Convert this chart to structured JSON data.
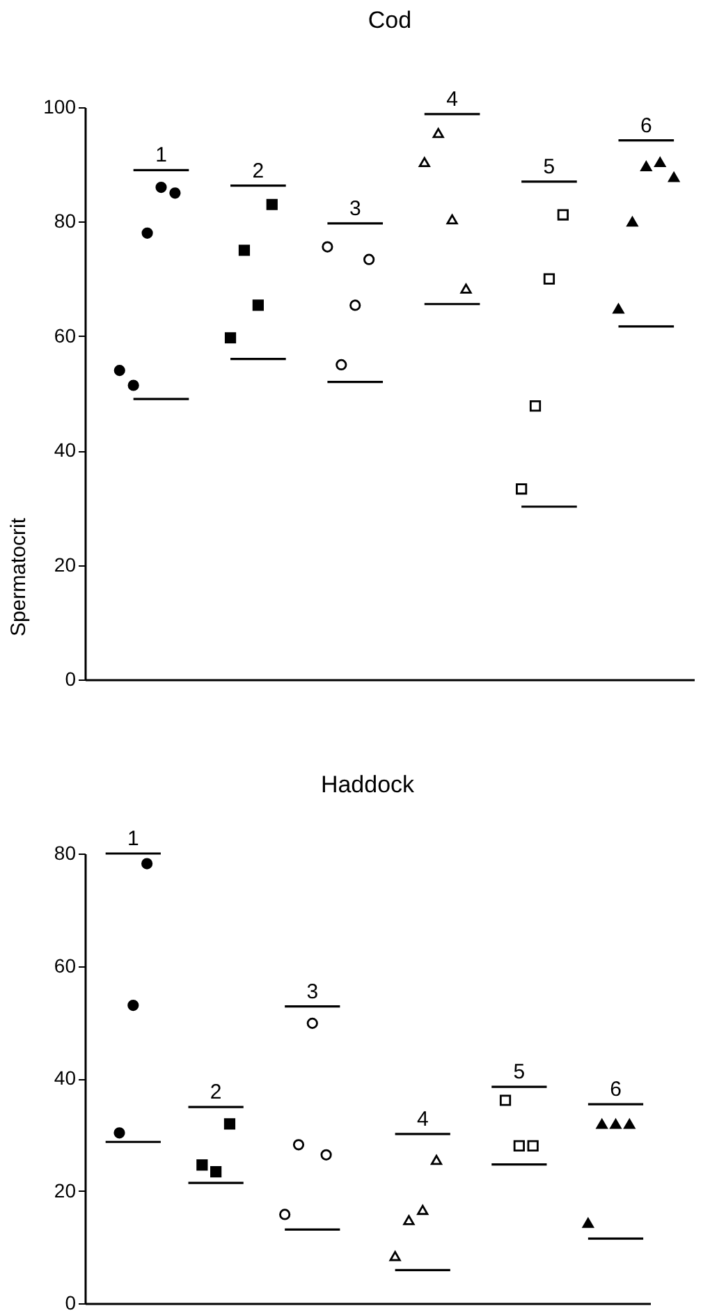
{
  "chart_data": [
    {
      "type": "scatter",
      "title": "Cod",
      "ylabel": "Spermatocrit",
      "ylim": [
        0,
        100
      ],
      "yticks": [
        0,
        20,
        40,
        60,
        80,
        100
      ],
      "tick_labels": "y",
      "grid": false,
      "categories": [
        null,
        null,
        null,
        null,
        null,
        null,
        null,
        null,
        null,
        null,
        null,
        null,
        null,
        null,
        null,
        null,
        null,
        null,
        null,
        null,
        null,
        null,
        null,
        null,
        null,
        null,
        null,
        null,
        null,
        null,
        null,
        null,
        null,
        null,
        null,
        null,
        null,
        null,
        null,
        null,
        null,
        null,
        null,
        null
      ],
      "series": [
        {
          "color": "#000000",
          "marker": "circle",
          "values": [
            null,
            null,
            54,
            51.4,
            78,
            86,
            85,
            null,
            null,
            null,
            null,
            null,
            null,
            null,
            null,
            null,
            null,
            null,
            null,
            null,
            null,
            null,
            null,
            null,
            null,
            null,
            null,
            null,
            null,
            null,
            null,
            null,
            null,
            null,
            null,
            null,
            null,
            null,
            null,
            null,
            null,
            null,
            null,
            null
          ]
        },
        {
          "color": "#000000",
          "marker": "square",
          "values": [
            null,
            null,
            null,
            null,
            null,
            null,
            null,
            null,
            null,
            null,
            59.7,
            75,
            65.4,
            83,
            null,
            null,
            null,
            null,
            null,
            null,
            null,
            null,
            null,
            null,
            null,
            null,
            null,
            null,
            null,
            null,
            null,
            null,
            null,
            null,
            null,
            null,
            null,
            null,
            null,
            null,
            null,
            null,
            null,
            null
          ]
        },
        {
          "color": "#ffffff",
          "marker": "circle",
          "values": [
            null,
            null,
            null,
            null,
            null,
            null,
            null,
            null,
            null,
            null,
            null,
            null,
            null,
            null,
            null,
            null,
            null,
            75.6,
            55,
            65.4,
            73.4,
            null,
            null,
            null,
            null,
            null,
            null,
            null,
            null,
            null,
            null,
            null,
            null,
            null,
            null,
            null,
            null,
            null,
            null,
            null,
            null,
            null,
            null,
            null
          ]
        },
        {
          "color": "#ffffff",
          "marker": "triangle",
          "values": [
            null,
            null,
            null,
            null,
            null,
            null,
            null,
            null,
            null,
            null,
            null,
            null,
            null,
            null,
            null,
            null,
            null,
            null,
            null,
            null,
            null,
            null,
            null,
            null,
            90.4,
            95.5,
            80.4,
            68.3,
            null,
            null,
            null,
            null,
            null,
            null,
            null,
            null,
            null,
            null,
            null,
            null,
            null,
            null,
            null,
            null
          ]
        },
        {
          "color": "#ffffff",
          "marker": "square",
          "values": [
            null,
            null,
            null,
            null,
            null,
            null,
            null,
            null,
            null,
            null,
            null,
            null,
            null,
            null,
            null,
            null,
            null,
            null,
            null,
            null,
            null,
            null,
            null,
            null,
            null,
            null,
            null,
            null,
            null,
            null,
            null,
            33.3,
            47.8,
            70,
            81.2,
            null,
            null,
            null,
            null,
            null,
            null,
            null,
            null,
            null
          ]
        },
        {
          "color": "#000000",
          "marker": "triangle",
          "values": [
            null,
            null,
            null,
            null,
            null,
            null,
            null,
            null,
            null,
            null,
            null,
            null,
            null,
            null,
            null,
            null,
            null,
            null,
            null,
            null,
            null,
            null,
            null,
            null,
            null,
            null,
            null,
            null,
            null,
            null,
            null,
            null,
            null,
            null,
            null,
            null,
            null,
            null,
            64.8,
            80,
            89.7,
            90.4,
            87.8,
            null
          ]
        },
        {
          "type": "line",
          "color": "#000000",
          "marker": "none",
          "line_style": "solid",
          "values": [
            null,
            null,
            null,
            89,
            89,
            89,
            89,
            89,
            null,
            null,
            null,
            null,
            null,
            null,
            null,
            null,
            null,
            null,
            null,
            null,
            null,
            null,
            null,
            null,
            null,
            null,
            null,
            null,
            null,
            null,
            null,
            null,
            null,
            null,
            null,
            null,
            null,
            null,
            null,
            null,
            null,
            null,
            null,
            null
          ]
        },
        {
          "type": "line",
          "color": "#000000",
          "marker": "none",
          "line_style": "solid",
          "values": [
            null,
            null,
            null,
            49,
            49,
            49,
            49,
            49,
            null,
            null,
            null,
            null,
            null,
            null,
            null,
            null,
            null,
            null,
            null,
            null,
            null,
            null,
            null,
            null,
            null,
            null,
            null,
            null,
            null,
            null,
            null,
            null,
            null,
            null,
            null,
            null,
            null,
            null,
            null,
            null,
            null,
            null,
            null,
            null
          ]
        },
        {
          "type": "line",
          "color": "#000000",
          "marker": "none",
          "line_style": "solid",
          "values": [
            null,
            null,
            null,
            null,
            null,
            null,
            null,
            null,
            null,
            null,
            86.3,
            86.3,
            86.3,
            86.3,
            86.3,
            null,
            null,
            null,
            null,
            null,
            null,
            null,
            null,
            null,
            null,
            null,
            null,
            null,
            null,
            null,
            null,
            null,
            null,
            null,
            null,
            null,
            null,
            null,
            null,
            null,
            null,
            null,
            null,
            null
          ]
        },
        {
          "type": "line",
          "color": "#000000",
          "marker": "none",
          "line_style": "solid",
          "values": [
            null,
            null,
            null,
            null,
            null,
            null,
            null,
            null,
            null,
            null,
            56,
            56,
            56,
            56,
            56,
            null,
            null,
            null,
            null,
            null,
            null,
            null,
            null,
            null,
            null,
            null,
            null,
            null,
            null,
            null,
            null,
            null,
            null,
            null,
            null,
            null,
            null,
            null,
            null,
            null,
            null,
            null,
            null,
            null
          ]
        },
        {
          "type": "line",
          "color": "#000000",
          "marker": "none",
          "line_style": "solid",
          "values": [
            null,
            null,
            null,
            null,
            null,
            null,
            null,
            null,
            null,
            null,
            null,
            null,
            null,
            null,
            null,
            null,
            null,
            79.7,
            79.7,
            79.7,
            79.7,
            79.7,
            null,
            null,
            null,
            null,
            null,
            null,
            null,
            null,
            null,
            null,
            null,
            null,
            null,
            null,
            null,
            null,
            null,
            null,
            null,
            null,
            null,
            null
          ]
        },
        {
          "type": "line",
          "color": "#000000",
          "marker": "none",
          "line_style": "solid",
          "values": [
            null,
            null,
            null,
            null,
            null,
            null,
            null,
            null,
            null,
            null,
            null,
            null,
            null,
            null,
            null,
            null,
            null,
            52,
            52,
            52,
            52,
            52,
            null,
            null,
            null,
            null,
            null,
            null,
            null,
            null,
            null,
            null,
            null,
            null,
            null,
            null,
            null,
            null,
            null,
            null,
            null,
            null,
            null,
            null
          ]
        },
        {
          "type": "line",
          "color": "#000000",
          "marker": "none",
          "line_style": "solid",
          "values": [
            null,
            null,
            null,
            null,
            null,
            null,
            null,
            null,
            null,
            null,
            null,
            null,
            null,
            null,
            null,
            null,
            null,
            null,
            null,
            null,
            null,
            null,
            null,
            null,
            98.8,
            98.8,
            98.8,
            98.8,
            98.8,
            null,
            null,
            null,
            null,
            null,
            null,
            null,
            null,
            null,
            null,
            null,
            null,
            null,
            null,
            null
          ]
        },
        {
          "type": "line",
          "color": "#000000",
          "marker": "none",
          "line_style": "solid",
          "values": [
            null,
            null,
            null,
            null,
            null,
            null,
            null,
            null,
            null,
            null,
            null,
            null,
            null,
            null,
            null,
            null,
            null,
            null,
            null,
            null,
            null,
            null,
            null,
            null,
            65.6,
            65.6,
            65.6,
            65.6,
            65.6,
            null,
            null,
            null,
            null,
            null,
            null,
            null,
            null,
            null,
            null,
            null,
            null,
            null,
            null,
            null
          ]
        },
        {
          "type": "line",
          "color": "#000000",
          "marker": "none",
          "line_style": "solid",
          "values": [
            null,
            null,
            null,
            null,
            null,
            null,
            null,
            null,
            null,
            null,
            null,
            null,
            null,
            null,
            null,
            null,
            null,
            null,
            null,
            null,
            null,
            null,
            null,
            null,
            null,
            null,
            null,
            null,
            null,
            null,
            null,
            87,
            87,
            87,
            87,
            87,
            null,
            null,
            null,
            null,
            null,
            null,
            null,
            null
          ]
        },
        {
          "type": "line",
          "color": "#000000",
          "marker": "none",
          "line_style": "solid",
          "values": [
            null,
            null,
            null,
            null,
            null,
            null,
            null,
            null,
            null,
            null,
            null,
            null,
            null,
            null,
            null,
            null,
            null,
            null,
            null,
            null,
            null,
            null,
            null,
            null,
            null,
            null,
            null,
            null,
            null,
            null,
            null,
            30.2,
            30.2,
            30.2,
            30.2,
            30.2,
            null,
            null,
            null,
            null,
            null,
            null,
            null,
            null
          ]
        },
        {
          "type": "line",
          "color": "#000000",
          "marker": "none",
          "line_style": "solid",
          "values": [
            null,
            null,
            null,
            null,
            null,
            null,
            null,
            null,
            null,
            null,
            null,
            null,
            null,
            null,
            null,
            null,
            null,
            null,
            null,
            null,
            null,
            null,
            null,
            null,
            null,
            null,
            null,
            null,
            null,
            null,
            null,
            null,
            null,
            null,
            null,
            null,
            null,
            null,
            94.2,
            94.2,
            94.2,
            94.2,
            94.2,
            null
          ]
        },
        {
          "type": "line",
          "color": "#000000",
          "marker": "none",
          "line_style": "solid",
          "values": [
            null,
            null,
            null,
            null,
            null,
            null,
            null,
            null,
            null,
            null,
            null,
            null,
            null,
            null,
            null,
            null,
            null,
            null,
            null,
            null,
            null,
            null,
            null,
            null,
            null,
            null,
            null,
            null,
            null,
            null,
            null,
            null,
            null,
            null,
            null,
            null,
            null,
            null,
            61.7,
            61.7,
            61.7,
            61.7,
            61.7,
            null
          ]
        }
      ],
      "annotations": [
        {
          "text": "1",
          "y": 89
        },
        {
          "text": "2",
          "y": 86.3
        },
        {
          "text": "3",
          "y": 79.7
        },
        {
          "text": "4",
          "y": 98.8
        },
        {
          "text": "5",
          "y": 87
        },
        {
          "text": "6",
          "y": 94.2
        }
      ]
    },
    {
      "type": "scatter",
      "title": "Haddock",
      "ylim": [
        0,
        80
      ],
      "yticks": [
        0,
        20,
        40,
        60,
        80
      ],
      "tick_labels": "y",
      "grid": false,
      "categories": [
        null,
        null,
        null,
        null,
        null,
        null,
        null,
        null,
        null,
        null,
        null,
        null,
        null,
        null,
        null,
        null,
        null,
        null,
        null,
        null,
        null,
        null,
        null,
        null,
        null,
        null,
        null,
        null,
        null,
        null,
        null,
        null,
        null,
        null,
        null,
        null,
        null,
        null,
        null,
        null,
        null
      ],
      "series": [
        {
          "color": "#000000",
          "marker": "circle",
          "values": [
            null,
            null,
            30.3,
            53,
            78.2,
            null,
            null,
            null,
            null,
            null,
            null,
            null,
            null,
            null,
            null,
            null,
            null,
            null,
            null,
            null,
            null,
            null,
            null,
            null,
            null,
            null,
            null,
            null,
            null,
            null,
            null,
            null,
            null,
            null,
            null,
            null,
            null,
            null,
            null,
            null,
            null
          ]
        },
        {
          "color": "#000000",
          "marker": "square",
          "values": [
            null,
            null,
            null,
            null,
            null,
            null,
            null,
            null,
            24.6,
            23.4,
            31.9,
            null,
            null,
            null,
            null,
            null,
            null,
            null,
            null,
            null,
            null,
            null,
            null,
            null,
            null,
            null,
            null,
            null,
            null,
            null,
            null,
            null,
            null,
            null,
            null,
            null,
            null,
            null,
            null,
            null,
            null
          ]
        },
        {
          "color": "#ffffff",
          "marker": "circle",
          "values": [
            null,
            null,
            null,
            null,
            null,
            null,
            null,
            null,
            null,
            null,
            null,
            null,
            null,
            null,
            15.8,
            28.2,
            49.8,
            26.4,
            null,
            null,
            null,
            null,
            null,
            null,
            null,
            null,
            null,
            null,
            null,
            null,
            null,
            null,
            null,
            null,
            null,
            null,
            null,
            null,
            null,
            null,
            null
          ]
        },
        {
          "color": "#ffffff",
          "marker": "triangle",
          "values": [
            null,
            null,
            null,
            null,
            null,
            null,
            null,
            null,
            null,
            null,
            null,
            null,
            null,
            null,
            null,
            null,
            null,
            null,
            null,
            null,
            null,
            null,
            8.4,
            14.8,
            16.6,
            25.5,
            null,
            null,
            null,
            null,
            null,
            null,
            null,
            null,
            null,
            null,
            null,
            null,
            null,
            null,
            null
          ]
        },
        {
          "color": "#ffffff",
          "marker": "square",
          "values": [
            null,
            null,
            null,
            null,
            null,
            null,
            null,
            null,
            null,
            null,
            null,
            null,
            null,
            null,
            null,
            null,
            null,
            null,
            null,
            null,
            null,
            null,
            null,
            null,
            null,
            null,
            null,
            null,
            null,
            null,
            36.1,
            28,
            28,
            null,
            null,
            null,
            null,
            null,
            null,
            null,
            null
          ]
        },
        {
          "color": "#000000",
          "marker": "triangle",
          "values": [
            null,
            null,
            null,
            null,
            null,
            null,
            null,
            null,
            null,
            null,
            null,
            null,
            null,
            null,
            null,
            null,
            null,
            null,
            null,
            null,
            null,
            null,
            null,
            null,
            null,
            null,
            null,
            null,
            null,
            null,
            null,
            null,
            null,
            null,
            null,
            null,
            14.3,
            31.9,
            31.9,
            31.9,
            null
          ]
        },
        {
          "type": "line",
          "color": "#000000",
          "marker": "none",
          "line_style": "solid",
          "values": [
            null,
            80,
            80,
            80,
            80,
            80,
            null,
            null,
            null,
            null,
            null,
            null,
            null,
            null,
            null,
            null,
            null,
            null,
            null,
            null,
            null,
            null,
            null,
            null,
            null,
            null,
            null,
            null,
            null,
            null,
            null,
            null,
            null,
            null,
            null,
            null,
            null,
            null,
            null,
            null,
            null
          ]
        },
        {
          "type": "line",
          "color": "#000000",
          "marker": "none",
          "line_style": "solid",
          "values": [
            null,
            28.7,
            28.7,
            28.7,
            28.7,
            28.7,
            null,
            null,
            null,
            null,
            null,
            null,
            null,
            null,
            null,
            null,
            null,
            null,
            null,
            null,
            null,
            null,
            null,
            null,
            null,
            null,
            null,
            null,
            null,
            null,
            null,
            null,
            null,
            null,
            null,
            null,
            null,
            null,
            null,
            null,
            null
          ]
        },
        {
          "type": "line",
          "color": "#000000",
          "marker": "none",
          "line_style": "solid",
          "values": [
            null,
            null,
            null,
            null,
            null,
            null,
            null,
            34.9,
            34.9,
            34.9,
            34.9,
            34.9,
            null,
            null,
            null,
            null,
            null,
            null,
            null,
            null,
            null,
            null,
            null,
            null,
            null,
            null,
            null,
            null,
            null,
            null,
            null,
            null,
            null,
            null,
            null,
            null,
            null,
            null,
            null,
            null,
            null
          ]
        },
        {
          "type": "line",
          "color": "#000000",
          "marker": "none",
          "line_style": "solid",
          "values": [
            null,
            null,
            null,
            null,
            null,
            null,
            null,
            21.4,
            21.4,
            21.4,
            21.4,
            21.4,
            null,
            null,
            null,
            null,
            null,
            null,
            null,
            null,
            null,
            null,
            null,
            null,
            null,
            null,
            null,
            null,
            null,
            null,
            null,
            null,
            null,
            null,
            null,
            null,
            null,
            null,
            null,
            null,
            null
          ]
        },
        {
          "type": "line",
          "color": "#000000",
          "marker": "none",
          "line_style": "solid",
          "values": [
            null,
            null,
            null,
            null,
            null,
            null,
            null,
            null,
            null,
            null,
            null,
            null,
            null,
            null,
            52.8,
            52.8,
            52.8,
            52.8,
            52.8,
            null,
            null,
            null,
            null,
            null,
            null,
            null,
            null,
            null,
            null,
            null,
            null,
            null,
            null,
            null,
            null,
            null,
            null,
            null,
            null,
            null,
            null
          ]
        },
        {
          "type": "line",
          "color": "#000000",
          "marker": "none",
          "line_style": "solid",
          "values": [
            null,
            null,
            null,
            null,
            null,
            null,
            null,
            null,
            null,
            null,
            null,
            null,
            null,
            null,
            13.1,
            13.1,
            13.1,
            13.1,
            13.1,
            null,
            null,
            null,
            null,
            null,
            null,
            null,
            null,
            null,
            null,
            null,
            null,
            null,
            null,
            null,
            null,
            null,
            null,
            null,
            null,
            null,
            null
          ]
        },
        {
          "type": "line",
          "color": "#000000",
          "marker": "none",
          "line_style": "solid",
          "values": [
            null,
            null,
            null,
            null,
            null,
            null,
            null,
            null,
            null,
            null,
            null,
            null,
            null,
            null,
            null,
            null,
            null,
            null,
            null,
            null,
            null,
            null,
            30.1,
            30.1,
            30.1,
            30.1,
            30.1,
            null,
            null,
            null,
            null,
            null,
            null,
            null,
            null,
            null,
            null,
            null,
            null,
            null,
            null
          ]
        },
        {
          "type": "line",
          "color": "#000000",
          "marker": "none",
          "line_style": "solid",
          "values": [
            null,
            null,
            null,
            null,
            null,
            null,
            null,
            null,
            null,
            null,
            null,
            null,
            null,
            null,
            null,
            null,
            null,
            null,
            null,
            null,
            null,
            null,
            5.9,
            5.9,
            5.9,
            5.9,
            5.9,
            null,
            null,
            null,
            null,
            null,
            null,
            null,
            null,
            null,
            null,
            null,
            null,
            null,
            null
          ]
        },
        {
          "type": "line",
          "color": "#000000",
          "marker": "none",
          "line_style": "solid",
          "values": [
            null,
            null,
            null,
            null,
            null,
            null,
            null,
            null,
            null,
            null,
            null,
            null,
            null,
            null,
            null,
            null,
            null,
            null,
            null,
            null,
            null,
            null,
            null,
            null,
            null,
            null,
            null,
            null,
            null,
            38.5,
            38.5,
            38.5,
            38.5,
            38.5,
            null,
            null,
            null,
            null,
            null,
            null,
            null
          ]
        },
        {
          "type": "line",
          "color": "#000000",
          "marker": "none",
          "line_style": "solid",
          "values": [
            null,
            null,
            null,
            null,
            null,
            null,
            null,
            null,
            null,
            null,
            null,
            null,
            null,
            null,
            null,
            null,
            null,
            null,
            null,
            null,
            null,
            null,
            null,
            null,
            null,
            null,
            null,
            null,
            null,
            24.7,
            24.7,
            24.7,
            24.7,
            24.7,
            null,
            null,
            null,
            null,
            null,
            null,
            null
          ]
        },
        {
          "type": "line",
          "color": "#000000",
          "marker": "none",
          "line_style": "solid",
          "values": [
            null,
            null,
            null,
            null,
            null,
            null,
            null,
            null,
            null,
            null,
            null,
            null,
            null,
            null,
            null,
            null,
            null,
            null,
            null,
            null,
            null,
            null,
            null,
            null,
            null,
            null,
            null,
            null,
            null,
            null,
            null,
            null,
            null,
            null,
            null,
            null,
            35.4,
            35.4,
            35.4,
            35.4,
            35.4
          ]
        },
        {
          "type": "line",
          "color": "#000000",
          "marker": "none",
          "line_style": "solid",
          "values": [
            null,
            null,
            null,
            null,
            null,
            null,
            null,
            null,
            null,
            null,
            null,
            null,
            null,
            null,
            null,
            null,
            null,
            null,
            null,
            null,
            null,
            null,
            null,
            null,
            null,
            null,
            null,
            null,
            null,
            null,
            null,
            null,
            null,
            null,
            null,
            null,
            11.5,
            11.5,
            11.5,
            11.5,
            11.5
          ]
        }
      ],
      "annotations": [
        {
          "text": "1",
          "y": 80
        },
        {
          "text": "2",
          "y": 34.9
        },
        {
          "text": "3",
          "y": 52.8
        },
        {
          "text": "4",
          "y": 30.1
        },
        {
          "text": "5",
          "y": 38.5
        },
        {
          "text": "6",
          "y": 35.4
        }
      ]
    }
  ]
}
